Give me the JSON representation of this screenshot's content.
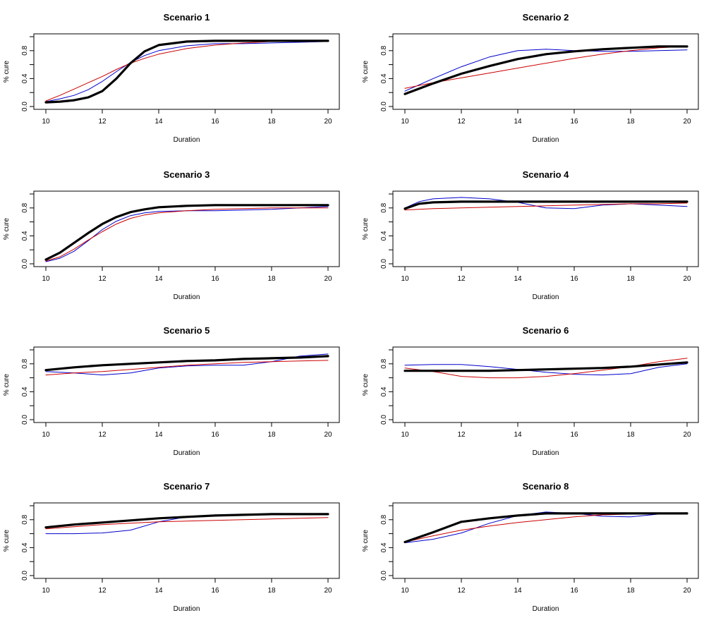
{
  "colors": {
    "series_1": "#000000",
    "series_2": "#0000cc",
    "series_3": "#cc0000"
  },
  "chart_data": [
    {
      "type": "line",
      "title": "Scenario 1",
      "xlabel": "Duration",
      "ylabel": "% cure",
      "xlim": [
        10,
        20
      ],
      "ylim": [
        0,
        1.0
      ],
      "x_ticks": [
        10,
        12,
        14,
        16,
        18,
        20
      ],
      "y_ticks": [
        0.0,
        0.4,
        0.8
      ],
      "series": [
        {
          "color": "#000000",
          "x": [
            10,
            10.5,
            11,
            11.5,
            12,
            12.5,
            13,
            13.5,
            14,
            15,
            16,
            17,
            18,
            19,
            20
          ],
          "y": [
            0.06,
            0.07,
            0.09,
            0.13,
            0.22,
            0.4,
            0.62,
            0.79,
            0.88,
            0.93,
            0.94,
            0.94,
            0.94,
            0.94,
            0.94
          ]
        },
        {
          "color": "#0000cc",
          "x": [
            10,
            10.5,
            11,
            11.5,
            12,
            12.5,
            13,
            13.5,
            14,
            15,
            16,
            17,
            18,
            19,
            20
          ],
          "y": [
            0.07,
            0.11,
            0.16,
            0.24,
            0.36,
            0.5,
            0.63,
            0.73,
            0.8,
            0.87,
            0.9,
            0.9,
            0.91,
            0.92,
            0.93
          ]
        },
        {
          "color": "#cc0000",
          "x": [
            10,
            10.5,
            11,
            11.5,
            12,
            12.5,
            13,
            13.5,
            14,
            15,
            16,
            17,
            18,
            19,
            20
          ],
          "y": [
            0.08,
            0.16,
            0.25,
            0.34,
            0.43,
            0.53,
            0.62,
            0.69,
            0.75,
            0.83,
            0.88,
            0.91,
            0.93,
            0.94,
            0.94
          ]
        }
      ]
    },
    {
      "type": "line",
      "title": "Scenario 2",
      "xlabel": "Duration",
      "ylabel": "% cure",
      "xlim": [
        10,
        20
      ],
      "ylim": [
        0,
        1.0
      ],
      "x_ticks": [
        10,
        12,
        14,
        16,
        18,
        20
      ],
      "y_ticks": [
        0.0,
        0.4,
        0.8
      ],
      "series": [
        {
          "color": "#000000",
          "x": [
            10,
            11,
            12,
            13,
            14,
            15,
            16,
            17,
            18,
            19,
            20
          ],
          "y": [
            0.18,
            0.33,
            0.47,
            0.58,
            0.68,
            0.75,
            0.79,
            0.82,
            0.84,
            0.86,
            0.86
          ]
        },
        {
          "color": "#0000cc",
          "x": [
            10,
            11,
            12,
            13,
            14,
            15,
            16,
            17,
            18,
            19,
            20
          ],
          "y": [
            0.22,
            0.4,
            0.57,
            0.71,
            0.8,
            0.82,
            0.8,
            0.79,
            0.79,
            0.8,
            0.81
          ]
        },
        {
          "color": "#cc0000",
          "x": [
            10,
            11,
            12,
            13,
            14,
            15,
            16,
            17,
            18,
            19,
            20
          ],
          "y": [
            0.26,
            0.34,
            0.41,
            0.48,
            0.55,
            0.62,
            0.69,
            0.75,
            0.8,
            0.84,
            0.86
          ]
        }
      ]
    },
    {
      "type": "line",
      "title": "Scenario 3",
      "xlabel": "Duration",
      "ylabel": "% cure",
      "xlim": [
        10,
        20
      ],
      "ylim": [
        0,
        1.0
      ],
      "x_ticks": [
        10,
        12,
        14,
        16,
        18,
        20
      ],
      "y_ticks": [
        0.0,
        0.4,
        0.8
      ],
      "series": [
        {
          "color": "#000000",
          "x": [
            10,
            10.5,
            11,
            11.5,
            12,
            12.5,
            13,
            13.5,
            14,
            15,
            16,
            17,
            18,
            19,
            20
          ],
          "y": [
            0.06,
            0.16,
            0.3,
            0.44,
            0.57,
            0.67,
            0.74,
            0.78,
            0.81,
            0.83,
            0.84,
            0.84,
            0.84,
            0.84,
            0.84
          ]
        },
        {
          "color": "#0000cc",
          "x": [
            10,
            10.5,
            11,
            11.5,
            12,
            12.5,
            13,
            13.5,
            14,
            15,
            16,
            17,
            18,
            19,
            20
          ],
          "y": [
            0.03,
            0.08,
            0.18,
            0.33,
            0.49,
            0.61,
            0.69,
            0.73,
            0.75,
            0.76,
            0.76,
            0.77,
            0.78,
            0.8,
            0.82
          ]
        },
        {
          "color": "#cc0000",
          "x": [
            10,
            10.5,
            11,
            11.5,
            12,
            12.5,
            13,
            13.5,
            14,
            15,
            16,
            17,
            18,
            19,
            20
          ],
          "y": [
            0.04,
            0.1,
            0.21,
            0.34,
            0.46,
            0.57,
            0.65,
            0.7,
            0.73,
            0.76,
            0.78,
            0.79,
            0.8,
            0.8,
            0.8
          ]
        }
      ]
    },
    {
      "type": "line",
      "title": "Scenario 4",
      "xlabel": "Duration",
      "ylabel": "% cure",
      "xlim": [
        10,
        20
      ],
      "ylim": [
        0,
        1.0
      ],
      "x_ticks": [
        10,
        12,
        14,
        16,
        18,
        20
      ],
      "y_ticks": [
        0.0,
        0.4,
        0.8
      ],
      "series": [
        {
          "color": "#000000",
          "x": [
            10,
            10.5,
            11,
            12,
            13,
            14,
            15,
            16,
            17,
            18,
            19,
            20
          ],
          "y": [
            0.79,
            0.86,
            0.88,
            0.89,
            0.89,
            0.89,
            0.89,
            0.89,
            0.89,
            0.89,
            0.89,
            0.89
          ]
        },
        {
          "color": "#0000cc",
          "x": [
            10,
            10.5,
            11,
            12,
            13,
            14,
            15,
            16,
            17,
            18,
            19,
            20
          ],
          "y": [
            0.8,
            0.89,
            0.93,
            0.95,
            0.93,
            0.88,
            0.8,
            0.79,
            0.84,
            0.86,
            0.84,
            0.82
          ]
        },
        {
          "color": "#cc0000",
          "x": [
            10,
            10.5,
            11,
            12,
            13,
            14,
            15,
            16,
            17,
            18,
            19,
            20
          ],
          "y": [
            0.77,
            0.78,
            0.79,
            0.8,
            0.81,
            0.82,
            0.83,
            0.84,
            0.85,
            0.86,
            0.86,
            0.87
          ]
        }
      ]
    },
    {
      "type": "line",
      "title": "Scenario 5",
      "xlabel": "Duration",
      "ylabel": "% cure",
      "xlim": [
        10,
        20
      ],
      "ylim": [
        0,
        1.0
      ],
      "x_ticks": [
        10,
        12,
        14,
        16,
        18,
        20
      ],
      "y_ticks": [
        0.0,
        0.4,
        0.8
      ],
      "series": [
        {
          "color": "#000000",
          "x": [
            10,
            11,
            12,
            13,
            14,
            15,
            16,
            17,
            18,
            19,
            20
          ],
          "y": [
            0.71,
            0.75,
            0.78,
            0.8,
            0.82,
            0.84,
            0.85,
            0.87,
            0.88,
            0.89,
            0.91
          ]
        },
        {
          "color": "#0000cc",
          "x": [
            10,
            11,
            12,
            13,
            14,
            15,
            16,
            17,
            18,
            19,
            20
          ],
          "y": [
            0.69,
            0.67,
            0.64,
            0.67,
            0.74,
            0.77,
            0.78,
            0.78,
            0.83,
            0.91,
            0.94
          ]
        },
        {
          "color": "#cc0000",
          "x": [
            10,
            11,
            12,
            13,
            14,
            15,
            16,
            17,
            18,
            19,
            20
          ],
          "y": [
            0.64,
            0.67,
            0.69,
            0.72,
            0.75,
            0.78,
            0.8,
            0.82,
            0.83,
            0.84,
            0.85
          ]
        }
      ]
    },
    {
      "type": "line",
      "title": "Scenario 6",
      "xlabel": "Duration",
      "ylabel": "% cure",
      "xlim": [
        10,
        20
      ],
      "ylim": [
        0,
        1.0
      ],
      "x_ticks": [
        10,
        12,
        14,
        16,
        18,
        20
      ],
      "y_ticks": [
        0.0,
        0.4,
        0.8
      ],
      "series": [
        {
          "color": "#000000",
          "x": [
            10,
            11,
            12,
            13,
            14,
            15,
            16,
            17,
            18,
            19,
            20
          ],
          "y": [
            0.7,
            0.7,
            0.7,
            0.7,
            0.71,
            0.72,
            0.73,
            0.74,
            0.76,
            0.79,
            0.82
          ]
        },
        {
          "color": "#0000cc",
          "x": [
            10,
            11,
            12,
            13,
            14,
            15,
            16,
            17,
            18,
            19,
            20
          ],
          "y": [
            0.78,
            0.79,
            0.79,
            0.76,
            0.72,
            0.68,
            0.65,
            0.64,
            0.66,
            0.75,
            0.8
          ]
        },
        {
          "color": "#cc0000",
          "x": [
            10,
            11,
            12,
            13,
            14,
            15,
            16,
            17,
            18,
            19,
            20
          ],
          "y": [
            0.74,
            0.69,
            0.62,
            0.6,
            0.6,
            0.62,
            0.66,
            0.71,
            0.76,
            0.83,
            0.88
          ]
        }
      ]
    },
    {
      "type": "line",
      "title": "Scenario 7",
      "xlabel": "Duration",
      "ylabel": "% cure",
      "xlim": [
        10,
        20
      ],
      "ylim": [
        0,
        1.0
      ],
      "x_ticks": [
        10,
        12,
        14,
        16,
        18,
        20
      ],
      "y_ticks": [
        0.0,
        0.4,
        0.8
      ],
      "series": [
        {
          "color": "#000000",
          "x": [
            10,
            11,
            12,
            13,
            14,
            15,
            16,
            17,
            18,
            19,
            20
          ],
          "y": [
            0.69,
            0.73,
            0.76,
            0.79,
            0.82,
            0.84,
            0.86,
            0.87,
            0.88,
            0.88,
            0.88
          ]
        },
        {
          "color": "#0000cc",
          "x": [
            10,
            11,
            12,
            13,
            14,
            15,
            16,
            17,
            18,
            19,
            20
          ],
          "y": [
            0.6,
            0.6,
            0.61,
            0.65,
            0.77,
            0.84,
            0.87,
            0.87,
            0.87,
            0.87,
            0.87
          ]
        },
        {
          "color": "#cc0000",
          "x": [
            10,
            11,
            12,
            13,
            14,
            15,
            16,
            17,
            18,
            19,
            20
          ],
          "y": [
            0.67,
            0.7,
            0.73,
            0.75,
            0.77,
            0.78,
            0.79,
            0.8,
            0.81,
            0.82,
            0.83
          ]
        }
      ]
    },
    {
      "type": "line",
      "title": "Scenario 8",
      "xlabel": "Duration",
      "ylabel": "% cure",
      "xlim": [
        10,
        20
      ],
      "ylim": [
        0,
        1.0
      ],
      "x_ticks": [
        10,
        12,
        14,
        16,
        18,
        20
      ],
      "y_ticks": [
        0.0,
        0.4,
        0.8
      ],
      "series": [
        {
          "color": "#000000",
          "x": [
            10,
            11,
            12,
            13,
            14,
            15,
            16,
            17,
            18,
            19,
            20
          ],
          "y": [
            0.48,
            0.62,
            0.77,
            0.82,
            0.86,
            0.89,
            0.89,
            0.89,
            0.89,
            0.89,
            0.89
          ]
        },
        {
          "color": "#0000cc",
          "x": [
            10,
            11,
            12,
            13,
            14,
            15,
            16,
            17,
            18,
            19,
            20
          ],
          "y": [
            0.47,
            0.52,
            0.61,
            0.75,
            0.86,
            0.91,
            0.89,
            0.85,
            0.84,
            0.88,
            0.9
          ]
        },
        {
          "color": "#cc0000",
          "x": [
            10,
            11,
            12,
            13,
            14,
            15,
            16,
            17,
            18,
            19,
            20
          ],
          "y": [
            0.48,
            0.57,
            0.65,
            0.71,
            0.76,
            0.8,
            0.84,
            0.87,
            0.88,
            0.89,
            0.9
          ]
        }
      ]
    }
  ]
}
